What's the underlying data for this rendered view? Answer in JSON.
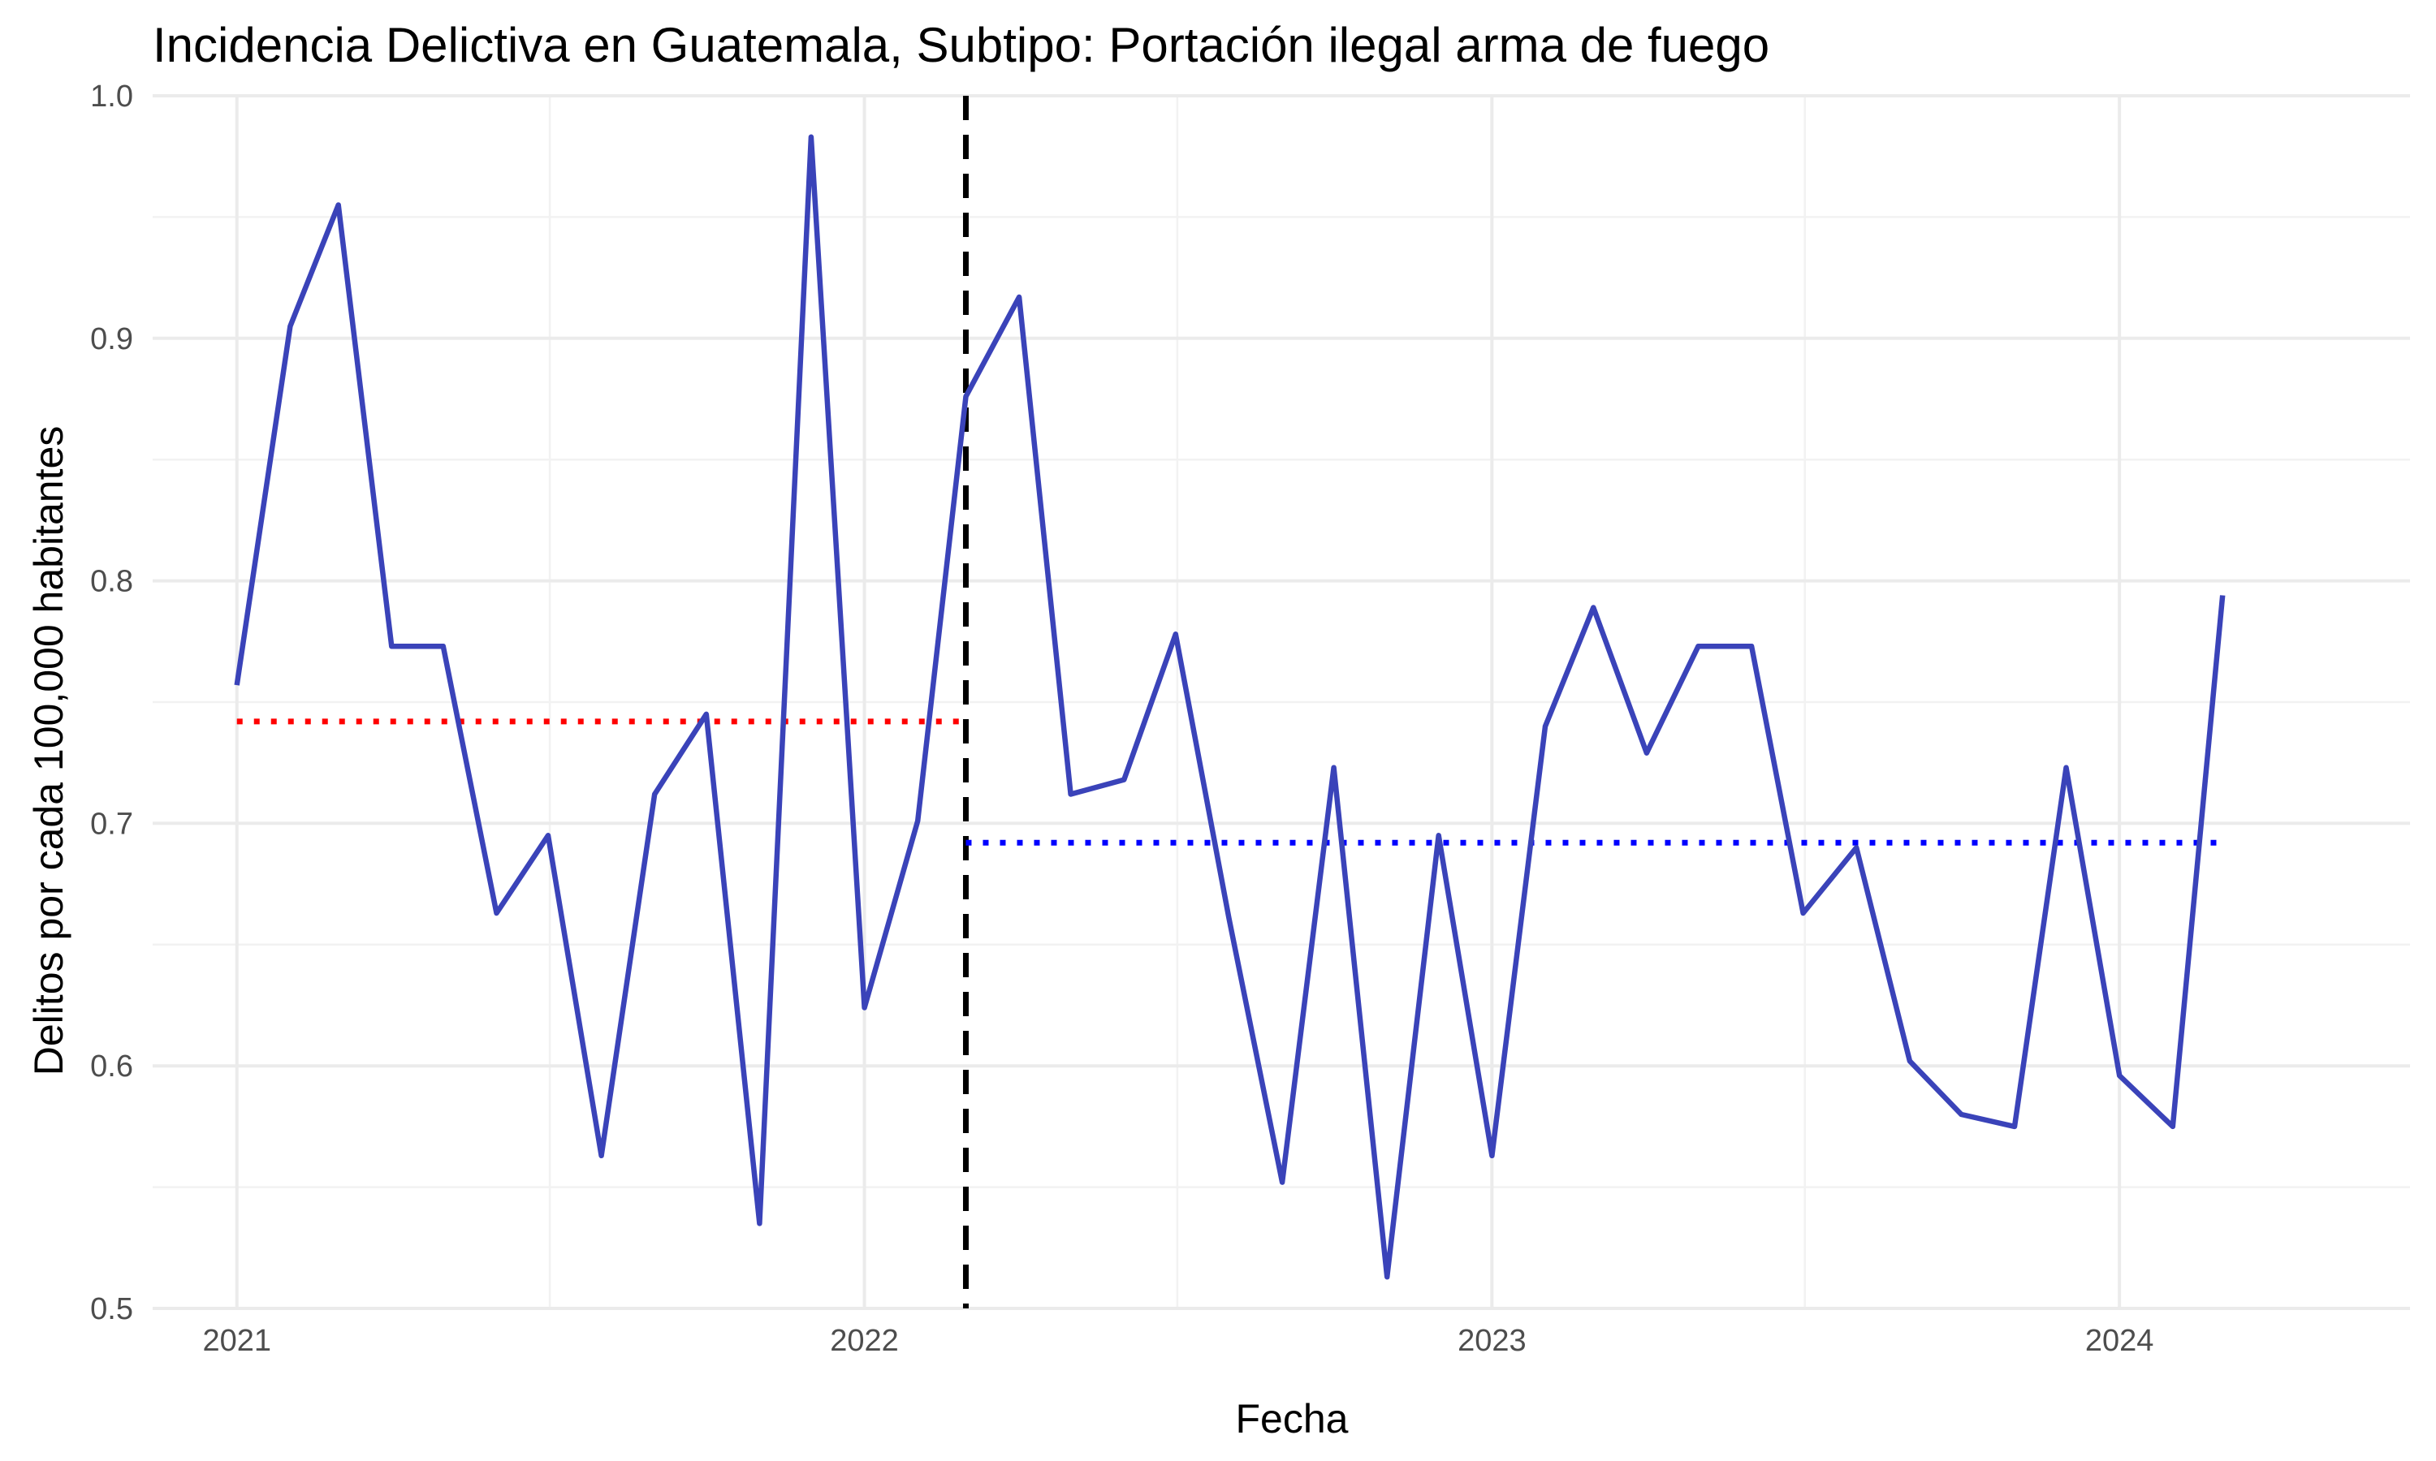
{
  "chart_data": {
    "type": "line",
    "title": "Incidencia Delictiva en Guatemala, Subtipo: Portación ilegal arma de fuego",
    "xlabel": "Fecha",
    "ylabel": "Delitos por cada 100,000 habitantes",
    "x_ticks": [
      "2021",
      "2022",
      "2023",
      "2024"
    ],
    "y_ticks": [
      "0.5",
      "0.6",
      "0.7",
      "0.8",
      "0.9",
      "1.0"
    ],
    "xlim": [
      "2020-11-13",
      "2024-06-18"
    ],
    "ylim": [
      0.5,
      1.0
    ],
    "grid": true,
    "x": [
      "2021-01",
      "2021-02",
      "2021-03",
      "2021-04",
      "2021-05",
      "2021-06",
      "2021-07",
      "2021-08",
      "2021-09",
      "2021-10",
      "2021-11",
      "2021-12",
      "2022-01",
      "2022-02",
      "2022-03",
      "2022-04",
      "2022-05",
      "2022-06",
      "2022-07",
      "2022-08",
      "2022-09",
      "2022-10",
      "2022-11",
      "2022-12",
      "2023-01",
      "2023-02",
      "2023-03",
      "2023-04",
      "2023-05",
      "2023-06",
      "2023-07",
      "2023-08",
      "2023-09",
      "2023-10",
      "2023-11",
      "2023-12",
      "2024-01",
      "2024-02",
      "2024-03"
    ],
    "series": [
      {
        "color": "#3a43b9",
        "values": [
          0.757,
          0.905,
          0.955,
          0.773,
          0.773,
          0.663,
          0.695,
          0.563,
          0.712,
          0.745,
          0.535,
          0.983,
          0.624,
          0.701,
          0.876,
          0.917,
          0.712,
          0.718,
          0.778,
          0.661,
          0.552,
          0.723,
          0.513,
          0.695,
          0.563,
          0.74,
          0.789,
          0.729,
          0.773,
          0.773,
          0.663,
          0.69,
          0.602,
          0.58,
          0.575,
          0.723,
          0.596,
          0.575,
          0.794
        ]
      }
    ],
    "reference_lines": [
      {
        "orientation": "vertical",
        "x": "2022-03",
        "style": "dashed",
        "color": "#000000"
      },
      {
        "orientation": "horizontal",
        "y": 0.742,
        "x_start": "2021-01",
        "x_end": "2022-03",
        "style": "dotted",
        "color": "#ff0000"
      },
      {
        "orientation": "horizontal",
        "y": 0.692,
        "x_start": "2022-03",
        "x_end": "2024-03",
        "style": "dotted",
        "color": "#0000ff"
      }
    ]
  }
}
